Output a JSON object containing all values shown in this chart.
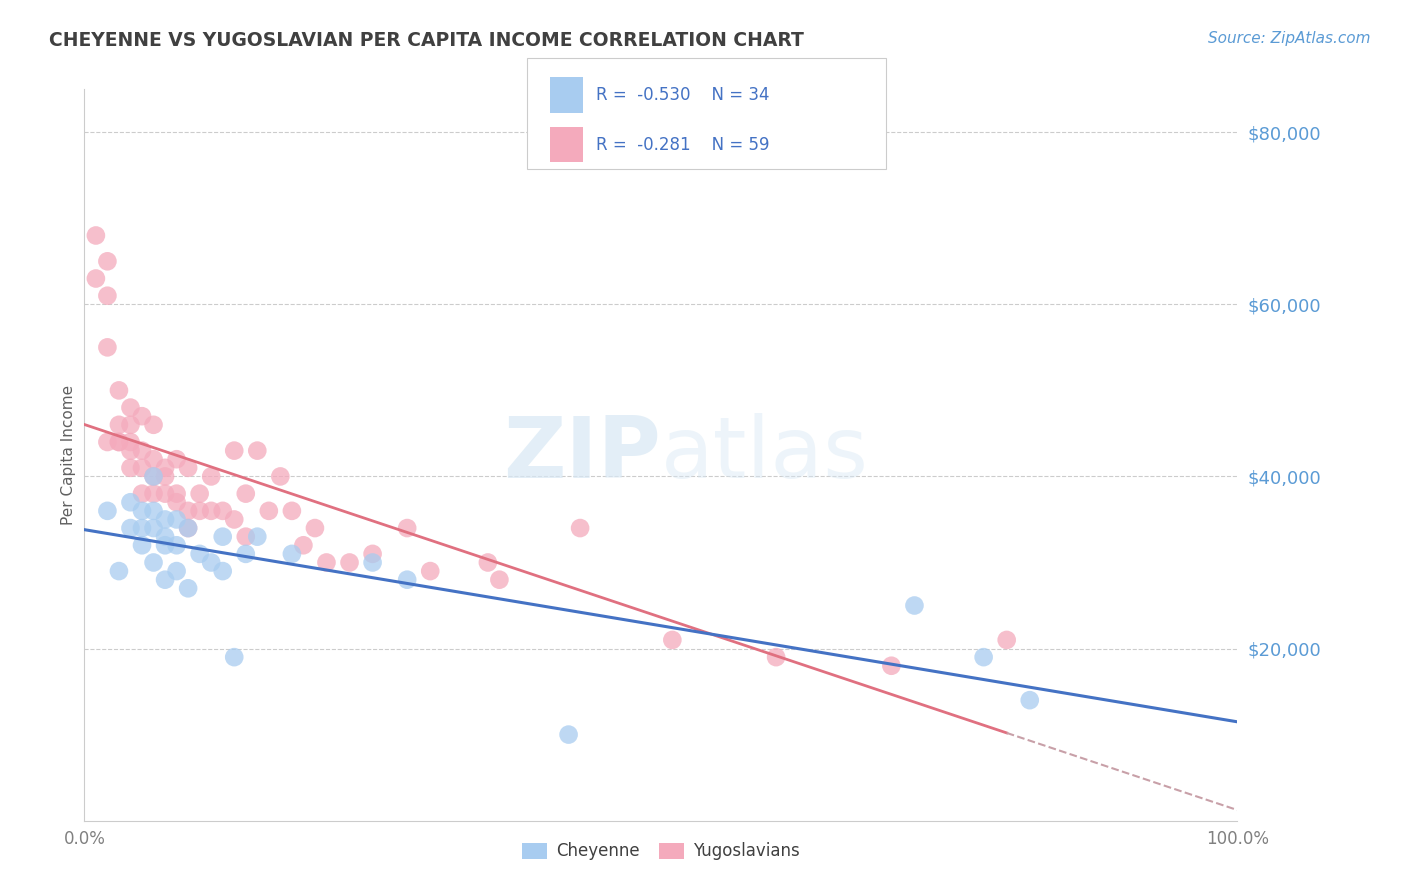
{
  "title": "CHEYENNE VS YUGOSLAVIAN PER CAPITA INCOME CORRELATION CHART",
  "source_text": "Source: ZipAtlas.com",
  "ylabel": "Per Capita Income",
  "xlim": [
    0.0,
    1.0
  ],
  "ylim": [
    0,
    85000
  ],
  "yticks": [
    20000,
    40000,
    60000,
    80000
  ],
  "ytick_labels": [
    "$20,000",
    "$40,000",
    "$60,000",
    "$80,000"
  ],
  "xtick_labels": [
    "0.0%",
    "100.0%"
  ],
  "legend_R1": "-0.530",
  "legend_N1": "34",
  "legend_R2": "-0.281",
  "legend_N2": "59",
  "legend_label1": "Cheyenne",
  "legend_label2": "Yugoslavians",
  "color_cheyenne": "#A8CCF0",
  "color_yugoslav": "#F4AABC",
  "color_line_blue": "#4472C4",
  "color_line_pink": "#E07080",
  "color_dashed": "#C8A0A8",
  "background_color": "#FFFFFF",
  "grid_color": "#CCCCCC",
  "title_color": "#404040",
  "watermark_zip": "ZIP",
  "watermark_atlas": "atlas",
  "cheyenne_x": [
    0.02,
    0.03,
    0.04,
    0.04,
    0.05,
    0.05,
    0.05,
    0.06,
    0.06,
    0.06,
    0.06,
    0.07,
    0.07,
    0.07,
    0.07,
    0.08,
    0.08,
    0.08,
    0.09,
    0.09,
    0.1,
    0.11,
    0.12,
    0.12,
    0.13,
    0.14,
    0.15,
    0.18,
    0.25,
    0.28,
    0.42,
    0.72,
    0.78,
    0.82
  ],
  "cheyenne_y": [
    36000,
    29000,
    37000,
    34000,
    36000,
    34000,
    32000,
    40000,
    36000,
    34000,
    30000,
    35000,
    33000,
    32000,
    28000,
    35000,
    32000,
    29000,
    34000,
    27000,
    31000,
    30000,
    33000,
    29000,
    19000,
    31000,
    33000,
    31000,
    30000,
    28000,
    10000,
    25000,
    19000,
    14000
  ],
  "yugoslav_x": [
    0.01,
    0.01,
    0.02,
    0.02,
    0.02,
    0.02,
    0.03,
    0.03,
    0.03,
    0.03,
    0.04,
    0.04,
    0.04,
    0.04,
    0.04,
    0.05,
    0.05,
    0.05,
    0.05,
    0.06,
    0.06,
    0.06,
    0.06,
    0.07,
    0.07,
    0.07,
    0.08,
    0.08,
    0.08,
    0.09,
    0.09,
    0.09,
    0.1,
    0.1,
    0.11,
    0.11,
    0.12,
    0.13,
    0.13,
    0.14,
    0.14,
    0.15,
    0.16,
    0.17,
    0.18,
    0.19,
    0.2,
    0.21,
    0.23,
    0.25,
    0.28,
    0.3,
    0.35,
    0.36,
    0.43,
    0.51,
    0.6,
    0.7,
    0.8
  ],
  "yugoslav_y": [
    63000,
    68000,
    44000,
    65000,
    55000,
    61000,
    46000,
    50000,
    44000,
    44000,
    48000,
    46000,
    44000,
    41000,
    43000,
    47000,
    43000,
    41000,
    38000,
    46000,
    42000,
    40000,
    38000,
    41000,
    40000,
    38000,
    42000,
    38000,
    37000,
    41000,
    36000,
    34000,
    38000,
    36000,
    40000,
    36000,
    36000,
    35000,
    43000,
    38000,
    33000,
    43000,
    36000,
    40000,
    36000,
    32000,
    34000,
    30000,
    30000,
    31000,
    34000,
    29000,
    30000,
    28000,
    34000,
    21000,
    19000,
    18000,
    21000
  ]
}
